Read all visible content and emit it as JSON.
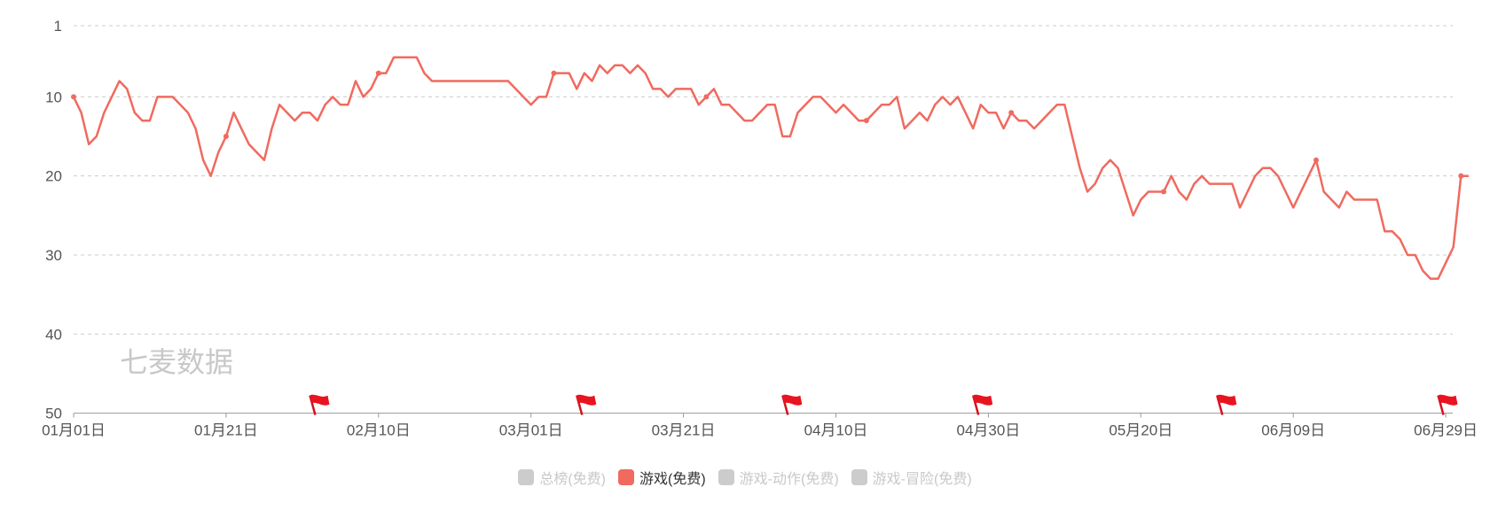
{
  "watermark": "七麦数据",
  "colors": {
    "line": "#F06A5F",
    "inactive": "#cccccc",
    "grid": "#cccccc"
  },
  "chart_data": {
    "type": "line",
    "title": "",
    "xlabel": "",
    "ylabel": "",
    "y_inverted": true,
    "ylim": [
      1,
      50
    ],
    "grid": "horizontal-dashed",
    "legend_position": "bottom",
    "yticks": [
      "1",
      "10",
      "20",
      "30",
      "40",
      "50"
    ],
    "xticks": [
      {
        "label": "01月01日",
        "day": 1
      },
      {
        "label": "01月21日",
        "day": 21
      },
      {
        "label": "02月10日",
        "day": 41
      },
      {
        "label": "03月01日",
        "day": 61
      },
      {
        "label": "03月21日",
        "day": 81
      },
      {
        "label": "04月10日",
        "day": 101
      },
      {
        "label": "04月30日",
        "day": 121
      },
      {
        "label": "05月20日",
        "day": 141
      },
      {
        "label": "06月09日",
        "day": 161
      },
      {
        "label": "06月29日",
        "day": 181
      }
    ],
    "flag_days": [
      32,
      67,
      94,
      119,
      151,
      180
    ],
    "legend": [
      {
        "name": "总榜(免费)",
        "active": false
      },
      {
        "name": "游戏(免费)",
        "active": true
      },
      {
        "name": "游戏-动作(免费)",
        "active": false
      },
      {
        "name": "游戏-冒险(免费)",
        "active": false
      }
    ],
    "series": [
      {
        "name": "游戏(免费)",
        "points": [
          [
            1,
            10
          ],
          [
            2,
            12
          ],
          [
            3,
            16
          ],
          [
            4,
            15
          ],
          [
            5,
            12
          ],
          [
            6,
            10
          ],
          [
            7,
            8
          ],
          [
            8,
            9
          ],
          [
            9,
            12
          ],
          [
            10,
            13
          ],
          [
            11,
            13
          ],
          [
            12,
            10
          ],
          [
            13,
            10
          ],
          [
            14,
            10
          ],
          [
            15,
            11
          ],
          [
            16,
            12
          ],
          [
            17,
            14
          ],
          [
            18,
            18
          ],
          [
            19,
            20
          ],
          [
            20,
            17
          ],
          [
            21,
            15
          ],
          [
            22,
            12
          ],
          [
            23,
            14
          ],
          [
            24,
            16
          ],
          [
            25,
            17
          ],
          [
            26,
            18
          ],
          [
            27,
            14
          ],
          [
            28,
            11
          ],
          [
            29,
            12
          ],
          [
            30,
            13
          ],
          [
            31,
            12
          ],
          [
            32,
            12
          ],
          [
            33,
            13
          ],
          [
            34,
            11
          ],
          [
            35,
            10
          ],
          [
            36,
            11
          ],
          [
            37,
            11
          ],
          [
            38,
            8
          ],
          [
            39,
            10
          ],
          [
            40,
            9
          ],
          [
            41,
            7
          ],
          [
            42,
            7
          ],
          [
            43,
            5
          ],
          [
            44,
            5
          ],
          [
            45,
            5
          ],
          [
            46,
            5
          ],
          [
            47,
            7
          ],
          [
            48,
            8
          ],
          [
            49,
            8
          ],
          [
            50,
            8
          ],
          [
            51,
            8
          ],
          [
            52,
            8
          ],
          [
            53,
            8
          ],
          [
            54,
            8
          ],
          [
            55,
            8
          ],
          [
            56,
            8
          ],
          [
            57,
            8
          ],
          [
            58,
            8
          ],
          [
            59,
            9
          ],
          [
            60,
            10
          ],
          [
            61,
            11
          ],
          [
            62,
            10
          ],
          [
            63,
            10
          ],
          [
            64,
            7
          ],
          [
            65,
            7
          ],
          [
            66,
            7
          ],
          [
            67,
            9
          ],
          [
            68,
            7
          ],
          [
            69,
            8
          ],
          [
            70,
            6
          ],
          [
            71,
            7
          ],
          [
            72,
            6
          ],
          [
            73,
            6
          ],
          [
            74,
            7
          ],
          [
            75,
            6
          ],
          [
            76,
            7
          ],
          [
            77,
            9
          ],
          [
            78,
            9
          ],
          [
            79,
            10
          ],
          [
            80,
            9
          ],
          [
            81,
            9
          ],
          [
            82,
            9
          ],
          [
            83,
            11
          ],
          [
            84,
            10
          ],
          [
            85,
            9
          ],
          [
            86,
            11
          ],
          [
            87,
            11
          ],
          [
            88,
            12
          ],
          [
            89,
            13
          ],
          [
            90,
            13
          ],
          [
            91,
            12
          ],
          [
            92,
            11
          ],
          [
            93,
            11
          ],
          [
            94,
            15
          ],
          [
            95,
            15
          ],
          [
            96,
            12
          ],
          [
            97,
            11
          ],
          [
            98,
            10
          ],
          [
            99,
            10
          ],
          [
            100,
            11
          ],
          [
            101,
            12
          ],
          [
            102,
            11
          ],
          [
            103,
            12
          ],
          [
            104,
            13
          ],
          [
            105,
            13
          ],
          [
            106,
            12
          ],
          [
            107,
            11
          ],
          [
            108,
            11
          ],
          [
            109,
            10
          ],
          [
            110,
            14
          ],
          [
            111,
            13
          ],
          [
            112,
            12
          ],
          [
            113,
            13
          ],
          [
            114,
            11
          ],
          [
            115,
            10
          ],
          [
            116,
            11
          ],
          [
            117,
            10
          ],
          [
            118,
            12
          ],
          [
            119,
            14
          ],
          [
            120,
            11
          ],
          [
            121,
            12
          ],
          [
            122,
            12
          ],
          [
            123,
            14
          ],
          [
            124,
            12
          ],
          [
            125,
            13
          ],
          [
            126,
            13
          ],
          [
            127,
            14
          ],
          [
            128,
            13
          ],
          [
            129,
            12
          ],
          [
            130,
            11
          ],
          [
            131,
            11
          ],
          [
            132,
            15
          ],
          [
            133,
            19
          ],
          [
            134,
            22
          ],
          [
            135,
            21
          ],
          [
            136,
            19
          ],
          [
            137,
            18
          ],
          [
            138,
            19
          ],
          [
            139,
            22
          ],
          [
            140,
            25
          ],
          [
            141,
            23
          ],
          [
            142,
            22
          ],
          [
            143,
            22
          ],
          [
            144,
            22
          ],
          [
            145,
            20
          ],
          [
            146,
            22
          ],
          [
            147,
            23
          ],
          [
            148,
            21
          ],
          [
            149,
            20
          ],
          [
            150,
            21
          ],
          [
            151,
            21
          ],
          [
            152,
            21
          ],
          [
            153,
            21
          ],
          [
            154,
            24
          ],
          [
            155,
            22
          ],
          [
            156,
            20
          ],
          [
            157,
            19
          ],
          [
            158,
            19
          ],
          [
            159,
            20
          ],
          [
            160,
            22
          ],
          [
            161,
            24
          ],
          [
            162,
            22
          ],
          [
            163,
            20
          ],
          [
            164,
            18
          ],
          [
            165,
            22
          ],
          [
            166,
            23
          ],
          [
            167,
            24
          ],
          [
            168,
            22
          ],
          [
            169,
            23
          ],
          [
            170,
            23
          ],
          [
            171,
            23
          ],
          [
            172,
            23
          ],
          [
            173,
            27
          ],
          [
            174,
            27
          ],
          [
            175,
            28
          ],
          [
            176,
            30
          ],
          [
            177,
            30
          ],
          [
            178,
            32
          ],
          [
            179,
            33
          ],
          [
            180,
            33
          ],
          [
            181,
            31
          ],
          [
            182,
            29
          ],
          [
            183,
            20
          ],
          [
            184,
            20
          ]
        ]
      }
    ]
  }
}
